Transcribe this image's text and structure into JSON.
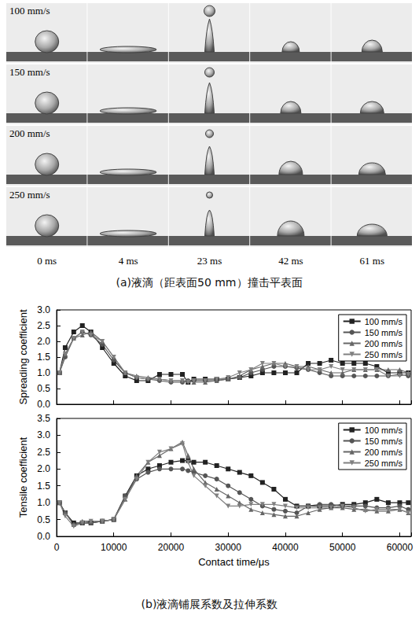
{
  "panel_a": {
    "rows": [
      "100 mm/s",
      "150 mm/s",
      "200 mm/s",
      "250 mm/s"
    ],
    "times": [
      "0 ms",
      "4 ms",
      "23 ms",
      "42 ms",
      "61 ms"
    ],
    "caption": "(a)液滴（距表面50 mm）撞击平表面"
  },
  "panel_b": {
    "caption": "(b)液滴铺展系数及拉伸系数"
  },
  "chart_data": [
    {
      "type": "line",
      "y_label": "Spreading coefficient",
      "tick_labels": "y",
      "grid": false,
      "legend": "upper right",
      "x": [
        500,
        1500,
        3000,
        4500,
        6000,
        8000,
        10000,
        12000,
        14000,
        16000,
        18000,
        20000,
        22000,
        23000,
        24000,
        26000,
        28000,
        30000,
        32000,
        34000,
        36000,
        38000,
        40000,
        42000,
        44000,
        46000,
        48000,
        50000,
        52000,
        54000,
        56000,
        58000,
        60000,
        61500
      ],
      "xlim": [
        0,
        62000
      ],
      "xticks": [
        0,
        10000,
        20000,
        30000,
        40000,
        50000,
        60000
      ],
      "ylim": [
        0,
        3
      ],
      "yticks": [
        {
          "value": 0,
          "label": "0.0"
        },
        0.5,
        {
          "value": 1,
          "label": "1.0"
        },
        1.5,
        {
          "value": 2,
          "label": "2.0"
        },
        2.5,
        {
          "value": 3,
          "label": "3.0"
        }
      ],
      "series": [
        {
          "name": "100 mm/s",
          "color": "#222222",
          "marker": "square",
          "values": [
            1.0,
            1.8,
            2.3,
            2.5,
            2.3,
            1.8,
            1.3,
            0.9,
            0.75,
            0.75,
            0.95,
            0.95,
            0.95,
            0.7,
            0.8,
            0.8,
            0.8,
            0.8,
            0.85,
            0.9,
            1.0,
            1.0,
            1.0,
            1.0,
            1.3,
            1.3,
            1.4,
            1.3,
            1.3,
            1.3,
            1.2,
            1.0,
            1.0,
            1.0
          ]
        },
        {
          "name": "150 mm/s",
          "color": "#555555",
          "marker": "circle",
          "values": [
            1.0,
            1.5,
            2.1,
            2.3,
            2.2,
            1.9,
            1.4,
            1.0,
            0.85,
            0.8,
            0.75,
            0.7,
            0.7,
            0.75,
            0.75,
            0.75,
            0.75,
            0.8,
            0.85,
            1.0,
            1.1,
            1.2,
            1.2,
            1.15,
            1.1,
            1.0,
            0.9,
            0.9,
            0.9,
            0.9,
            0.9,
            0.9,
            0.95,
            0.9
          ]
        },
        {
          "name": "200 mm/s",
          "color": "#666666",
          "marker": "triangle",
          "values": [
            1.0,
            1.6,
            2.1,
            2.2,
            2.3,
            2.0,
            1.5,
            1.0,
            0.9,
            0.85,
            0.8,
            0.75,
            0.75,
            0.75,
            0.7,
            0.7,
            0.75,
            0.8,
            0.9,
            1.1,
            1.2,
            1.3,
            1.3,
            1.2,
            1.2,
            1.1,
            1.0,
            1.0,
            1.1,
            1.1,
            1.1,
            1.1,
            1.1,
            1.0
          ]
        },
        {
          "name": "250 mm/s",
          "color": "#808080",
          "marker": "triangle_down",
          "values": [
            1.0,
            1.6,
            2.1,
            2.3,
            2.2,
            2.0,
            1.5,
            1.0,
            0.85,
            0.8,
            0.8,
            0.75,
            0.75,
            0.7,
            0.75,
            0.75,
            0.8,
            0.85,
            1.0,
            1.1,
            1.3,
            1.3,
            1.2,
            1.2,
            1.1,
            1.1,
            1.2,
            1.1,
            1.1,
            1.1,
            1.1,
            0.9,
            0.9,
            0.95
          ]
        }
      ]
    },
    {
      "type": "line",
      "y_label": "Tensile coefficient",
      "x_label": "Contact time/μs",
      "grid": false,
      "legend": "upper right",
      "x": [
        500,
        1500,
        3000,
        4500,
        6000,
        8000,
        10000,
        12000,
        14000,
        16000,
        18000,
        20000,
        22000,
        23000,
        24000,
        26000,
        28000,
        30000,
        32000,
        34000,
        36000,
        38000,
        40000,
        42000,
        44000,
        46000,
        48000,
        50000,
        52000,
        54000,
        56000,
        58000,
        60000,
        61500
      ],
      "xlim": [
        0,
        62000
      ],
      "xticks": [
        0,
        10000,
        20000,
        30000,
        40000,
        50000,
        60000
      ],
      "ylim": [
        0,
        3.5
      ],
      "yticks": [
        {
          "value": 0,
          "label": "0.0"
        },
        0.5,
        {
          "value": 1,
          "label": "1.0"
        },
        1.5,
        {
          "value": 2,
          "label": "2.0"
        },
        2.5,
        {
          "value": 3,
          "label": "3.0"
        },
        3.5
      ],
      "series": [
        {
          "name": "100 mm/s",
          "color": "#222222",
          "marker": "square",
          "values": [
            1.0,
            0.7,
            0.4,
            0.4,
            0.4,
            0.45,
            0.5,
            1.2,
            1.8,
            2.0,
            2.1,
            2.2,
            2.25,
            2.25,
            2.2,
            2.2,
            2.1,
            2.0,
            1.9,
            1.8,
            1.6,
            1.4,
            1.1,
            0.9,
            0.9,
            0.9,
            0.9,
            0.95,
            0.95,
            1.0,
            1.1,
            1.0,
            1.0,
            1.0
          ]
        },
        {
          "name": "150 mm/s",
          "color": "#555555",
          "marker": "circle",
          "values": [
            1.0,
            0.7,
            0.35,
            0.4,
            0.4,
            0.45,
            0.5,
            1.2,
            1.7,
            1.9,
            2.0,
            2.0,
            2.0,
            1.95,
            1.9,
            1.8,
            1.7,
            1.5,
            1.3,
            1.1,
            0.9,
            0.8,
            0.75,
            0.7,
            0.9,
            0.95,
            0.95,
            0.9,
            0.9,
            0.9,
            0.85,
            0.85,
            0.9,
            0.8
          ]
        },
        {
          "name": "200 mm/s",
          "color": "#666666",
          "marker": "triangle",
          "values": [
            1.0,
            0.7,
            0.35,
            0.45,
            0.45,
            0.45,
            0.5,
            1.1,
            1.8,
            2.2,
            2.4,
            2.6,
            2.8,
            2.4,
            2.0,
            1.6,
            1.4,
            1.2,
            1.0,
            0.8,
            0.7,
            0.65,
            0.6,
            0.6,
            0.7,
            0.8,
            0.85,
            0.85,
            0.8,
            0.8,
            0.75,
            0.75,
            0.8,
            0.7
          ]
        },
        {
          "name": "250 mm/s",
          "color": "#808080",
          "marker": "triangle_down",
          "values": [
            1.0,
            0.6,
            0.3,
            0.4,
            0.45,
            0.45,
            0.5,
            1.1,
            1.7,
            2.2,
            2.5,
            2.6,
            2.75,
            2.2,
            1.8,
            1.5,
            1.2,
            0.9,
            0.9,
            0.95,
            0.95,
            0.95,
            0.9,
            0.85,
            0.85,
            0.85,
            0.85,
            0.9,
            0.85,
            0.75,
            0.8,
            0.8,
            0.8,
            0.7
          ]
        }
      ]
    }
  ]
}
